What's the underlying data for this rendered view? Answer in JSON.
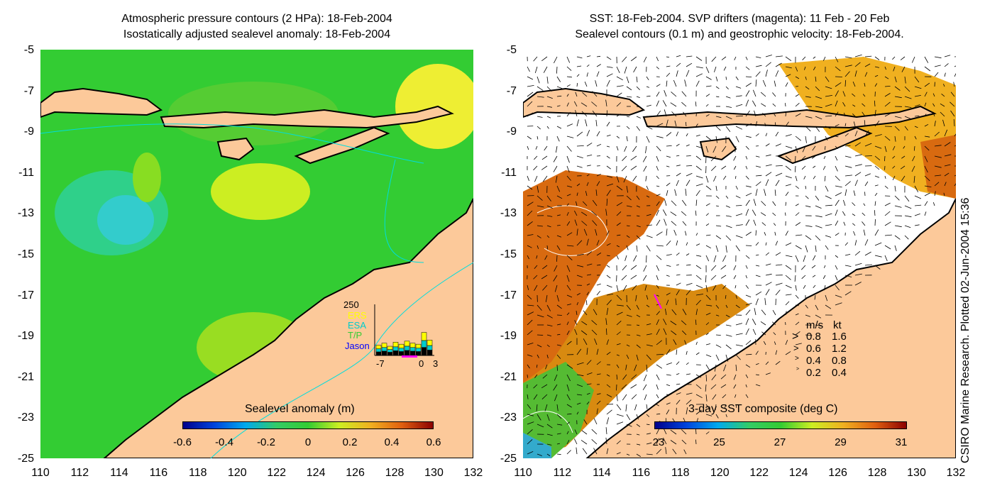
{
  "left_panel": {
    "title_line1": "Atmospheric pressure contours (2 HPa): 18-Feb-2004",
    "title_line2": "Isostatically adjusted sealevel anomaly: 18-Feb-2004",
    "colorbar": {
      "title": "Sealevel anomaly (m)",
      "labels": [
        "-0.6",
        "-0.4",
        "-0.2",
        "0",
        "0.2",
        "0.4",
        "0.6"
      ]
    },
    "inset": {
      "ymax_label": "250",
      "series": [
        "ERS",
        "ESA",
        "T/P",
        "Jason"
      ],
      "series_colors": [
        "#ffff00",
        "#00cccc",
        "#33cc33",
        "#0000ff"
      ],
      "x_labels": [
        "-7",
        "0",
        "3"
      ]
    }
  },
  "right_panel": {
    "title_line1": "SST: 18-Feb-2004. SVP drifters (magenta): 11 Feb - 20 Feb",
    "title_line2": "Sealevel contours (0.1 m) and geostrophic velocity: 18-Feb-2004.",
    "colorbar": {
      "title": "3-day SST composite (deg C)",
      "labels": [
        "23",
        "25",
        "27",
        "29",
        "31"
      ]
    },
    "velocity_legend": {
      "header": [
        "m/s",
        "kt"
      ],
      "rows": [
        {
          "ms": "0.8",
          "kt": "1.6"
        },
        {
          "ms": "0.6",
          "kt": "1.2"
        },
        {
          "ms": "0.4",
          "kt": "0.8"
        },
        {
          "ms": "0.2",
          "kt": "0.4"
        }
      ]
    }
  },
  "axes": {
    "y_ticks": [
      "-5",
      "-7",
      "-9",
      "-11",
      "-13",
      "-15",
      "-17",
      "-19",
      "-21",
      "-23",
      "-25"
    ],
    "x_ticks": [
      "110",
      "112",
      "114",
      "116",
      "118",
      "120",
      "122",
      "124",
      "126",
      "128",
      "130",
      "132"
    ]
  },
  "credit": "CSIRO Marine Research. Plotted 02-Jun-2004 15:36",
  "colors": {
    "land": "#fcc99a",
    "ocean_anomaly": "#33cc33",
    "sst_warm": "#d86a10"
  }
}
